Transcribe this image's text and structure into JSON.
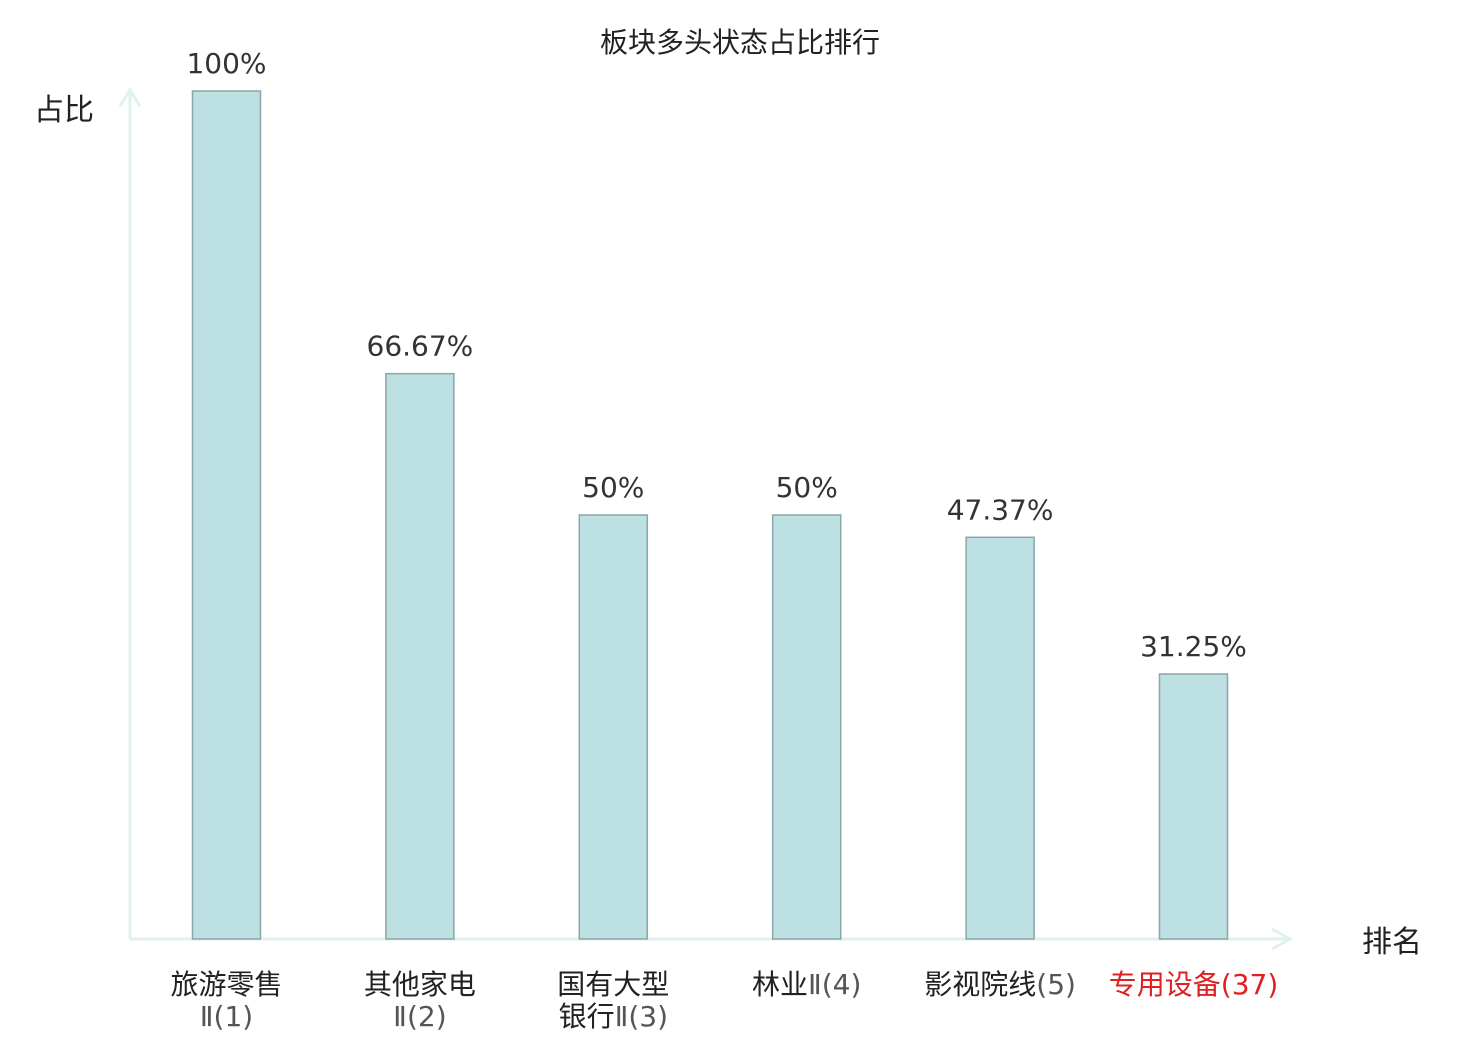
{
  "chart_data": {
    "type": "bar",
    "title": "板块多头状态占比排行",
    "ylabel": "占比",
    "xlabel": "排名",
    "ylim": [
      0,
      100
    ],
    "grid": false,
    "categories": [
      {
        "name": "旅游零售",
        "suffix": "Ⅱ",
        "rank": "(1)",
        "label": "旅游零售Ⅱ(1)",
        "highlight": false
      },
      {
        "name": "其他家电",
        "suffix": "Ⅱ",
        "rank": "(2)",
        "label": "其他家电Ⅱ(2)",
        "highlight": false
      },
      {
        "name": "国有大型银行",
        "suffix": "Ⅱ",
        "rank": "(3)",
        "label": "国有大型银行Ⅱ(3)",
        "highlight": false
      },
      {
        "name": "林业",
        "suffix": "Ⅱ",
        "rank": "(4)",
        "label": "林业Ⅱ(4)",
        "highlight": false
      },
      {
        "name": "影视院线",
        "suffix": "",
        "rank": "(5)",
        "label": "影视院线(5)",
        "highlight": false
      },
      {
        "name": "专用设备",
        "suffix": "",
        "rank": "(37)",
        "label": "专用设备(37)",
        "highlight": true
      }
    ],
    "values": [
      100,
      66.67,
      50,
      50,
      47.37,
      31.25
    ],
    "value_labels": [
      "100%",
      "66.67%",
      "50%",
      "50%",
      "47.37%",
      "31.25%"
    ]
  },
  "colors": {
    "bar_fill": "#bde0e2",
    "bar_stroke": "#8aa6a8",
    "axis": "#e0f2ef",
    "text": "#222222",
    "value_text": "#333333",
    "sub_text": "#555555",
    "highlight": "#e02020"
  }
}
